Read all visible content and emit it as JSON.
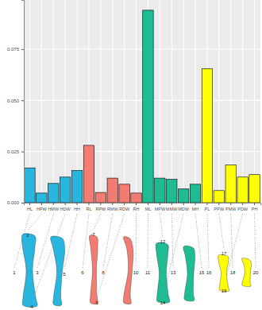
{
  "chart_data": {
    "type": "bar",
    "categories": [
      "HL",
      "HPW",
      "HMW",
      "HDW",
      "HH",
      "RL",
      "RPW",
      "RMW",
      "RDW",
      "RH",
      "ML",
      "MPW",
      "MMW",
      "MDW",
      "MH",
      "PL",
      "PPW",
      "PMW",
      "PDW",
      "PH"
    ],
    "values": [
      0.017,
      0.0047,
      0.0094,
      0.0125,
      0.0157,
      0.028,
      0.005,
      0.012,
      0.009,
      0.0047,
      0.094,
      0.012,
      0.0114,
      0.0067,
      0.009,
      0.0655,
      0.0059,
      0.0184,
      0.0125,
      0.0137
    ],
    "colors": [
      "#29b6de",
      "#29b6de",
      "#29b6de",
      "#29b6de",
      "#29b6de",
      "#f27c72",
      "#f27c72",
      "#f27c72",
      "#f27c72",
      "#f27c72",
      "#1fbc93",
      "#1fbc93",
      "#1fbc93",
      "#1fbc93",
      "#1fbc93",
      "#ffff00",
      "#ffff00",
      "#ffff00",
      "#ffff00",
      "#ffff00"
    ],
    "ylim": [
      0,
      0.099
    ],
    "yticks": [
      {
        "value": 0,
        "label": "0.000"
      },
      {
        "value": 0.025,
        "label": "0.025"
      },
      {
        "value": 0.05,
        "label": "0.050"
      },
      {
        "value": 0.075,
        "label": "0.075"
      }
    ],
    "grid": true
  },
  "diagram": {
    "measurement_labels": [
      "1",
      "2",
      "3",
      "4",
      "5",
      "6",
      "7",
      "8",
      "9",
      "10",
      "11",
      "12",
      "13",
      "14",
      "15",
      "16",
      "17",
      "18",
      "19",
      "20"
    ]
  }
}
